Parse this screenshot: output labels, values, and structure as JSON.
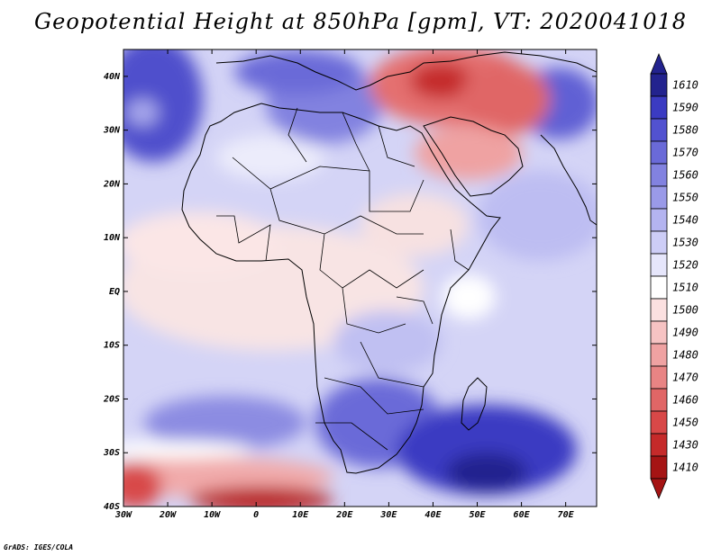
{
  "title": "Geopotential Height at 850hPa [gpm], VT: 2020041018",
  "credit": "GrADS: IGES/COLA",
  "map": {
    "variable": "Geopotential Height at 850hPa",
    "units": "gpm",
    "valid_time": "2020041018",
    "lon_range": [
      -30,
      77
    ],
    "lat_range": [
      -40,
      45
    ],
    "lon_ticks": [
      {
        "value": -30,
        "label": "30W"
      },
      {
        "value": -20,
        "label": "20W"
      },
      {
        "value": -10,
        "label": "10W"
      },
      {
        "value": 0,
        "label": "0"
      },
      {
        "value": 10,
        "label": "10E"
      },
      {
        "value": 20,
        "label": "20E"
      },
      {
        "value": 30,
        "label": "30E"
      },
      {
        "value": 40,
        "label": "40E"
      },
      {
        "value": 50,
        "label": "50E"
      },
      {
        "value": 60,
        "label": "60E"
      },
      {
        "value": 70,
        "label": "70E"
      }
    ],
    "lat_ticks": [
      {
        "value": 40,
        "label": "40N"
      },
      {
        "value": 30,
        "label": "30N"
      },
      {
        "value": 20,
        "label": "20N"
      },
      {
        "value": 10,
        "label": "10N"
      },
      {
        "value": 0,
        "label": "EQ"
      },
      {
        "value": -10,
        "label": "10S"
      },
      {
        "value": -20,
        "label": "20S"
      },
      {
        "value": -30,
        "label": "30S"
      },
      {
        "value": -40,
        "label": "40S"
      }
    ]
  },
  "colorbar": {
    "labels": [
      "1610",
      "1590",
      "1580",
      "1570",
      "1560",
      "1550",
      "1540",
      "1530",
      "1520",
      "1510",
      "1500",
      "1490",
      "1480",
      "1470",
      "1460",
      "1450",
      "1430",
      "1410"
    ],
    "colors": [
      "#23238e",
      "#3b3bc2",
      "#5252d0",
      "#6a6ad8",
      "#8282e0",
      "#9a9ae8",
      "#b4b4f0",
      "#cdcdf6",
      "#e6e6fb",
      "#ffffff",
      "#fbe0e0",
      "#f6c3c3",
      "#efa2a2",
      "#e88484",
      "#e06666",
      "#d84848",
      "#c52a2a",
      "#a51414"
    ]
  }
}
